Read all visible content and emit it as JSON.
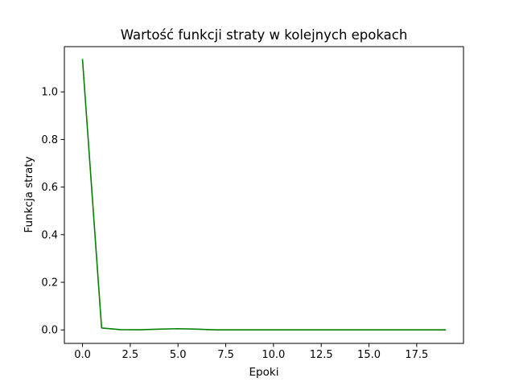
{
  "chart_data": {
    "type": "line",
    "title": "Wartość funkcji straty w kolejnych epokach",
    "xlabel": "Epoki",
    "ylabel": "Funkcja straty",
    "xlim": [
      -0.95,
      19.95
    ],
    "ylim": [
      -0.0567,
      1.19
    ],
    "xticks": [
      0.0,
      2.5,
      5.0,
      7.5,
      10.0,
      12.5,
      15.0,
      17.5
    ],
    "xtick_labels": [
      "0.0",
      "2.5",
      "5.0",
      "7.5",
      "10.0",
      "12.5",
      "15.0",
      "17.5"
    ],
    "yticks": [
      0.0,
      0.2,
      0.4,
      0.6,
      0.8,
      1.0
    ],
    "ytick_labels": [
      "0.0",
      "0.2",
      "0.4",
      "0.6",
      "0.8",
      "1.0"
    ],
    "grid": false,
    "legend": false,
    "series": [
      {
        "color": "#008000",
        "x": [
          0,
          1,
          2,
          3,
          4,
          5,
          6,
          7,
          8,
          9,
          10,
          11,
          12,
          13,
          14,
          15,
          16,
          17,
          18,
          19
        ],
        "values": [
          1.135,
          0.008,
          0.001,
          0.0005,
          0.003,
          0.005,
          0.003,
          0.0002,
          0.0001,
          0.0001,
          0.0001,
          0.0001,
          0.0001,
          0.0001,
          0.0001,
          0.0001,
          0.0001,
          0.0001,
          0.0001,
          0.0001
        ]
      }
    ]
  }
}
